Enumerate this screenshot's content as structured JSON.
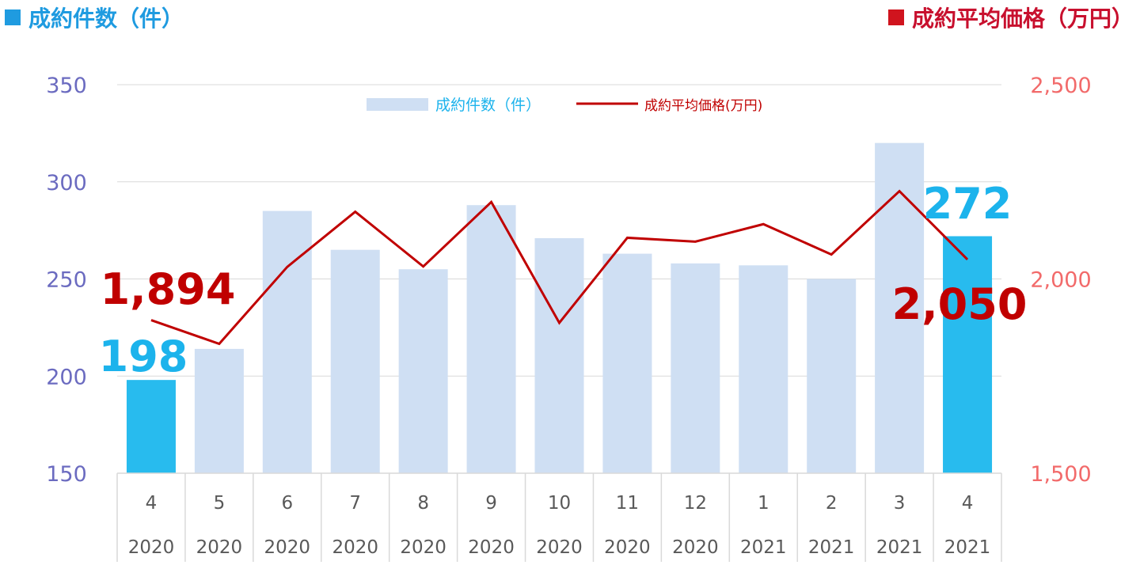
{
  "titles": {
    "left": "成約件数（件）",
    "right": "成約平均価格（万円）"
  },
  "colors": {
    "bar": "#cfdff3",
    "bar_highlight": "#28bbee",
    "line": "#c00000",
    "left_axis": "#6b6bc0",
    "right_axis": "#f26a6a",
    "left_title": "#1f9be0",
    "right_title": "#c8102e",
    "callout_blue": "#1cb3ec",
    "callout_red": "#c00000"
  },
  "chart_data": {
    "type": "bar+line",
    "categories": [
      {
        "month": "4",
        "year": "2020"
      },
      {
        "month": "5",
        "year": "2020"
      },
      {
        "month": "6",
        "year": "2020"
      },
      {
        "month": "7",
        "year": "2020"
      },
      {
        "month": "8",
        "year": "2020"
      },
      {
        "month": "9",
        "year": "2020"
      },
      {
        "month": "10",
        "year": "2020"
      },
      {
        "month": "11",
        "year": "2020"
      },
      {
        "month": "12",
        "year": "2020"
      },
      {
        "month": "1",
        "year": "2021"
      },
      {
        "month": "2",
        "year": "2021"
      },
      {
        "month": "3",
        "year": "2021"
      },
      {
        "month": "4",
        "year": "2021"
      }
    ],
    "series": [
      {
        "name": "成約件数（件）",
        "type": "bar",
        "axis": "left",
        "values": [
          198,
          214,
          285,
          265,
          255,
          288,
          271,
          263,
          258,
          257,
          250,
          320,
          272
        ],
        "highlight_indices": [
          0,
          12
        ]
      },
      {
        "name": "成約平均価格(万円)",
        "type": "line",
        "axis": "right",
        "values": [
          1894,
          1833,
          2031,
          2173,
          2032,
          2198,
          1887,
          2106,
          2096,
          2141,
          2063,
          2226,
          2050
        ]
      }
    ],
    "y_left": {
      "ylim": [
        150,
        350
      ],
      "ticks": [
        "150",
        "200",
        "250",
        "300",
        "350"
      ]
    },
    "y_right": {
      "ylim": [
        1500,
        2500
      ],
      "ticks": [
        "1,500",
        "2,000",
        "2,500"
      ]
    },
    "legend_placement": "top-center",
    "grid": true,
    "callouts": [
      {
        "text": "1,894",
        "series": "line",
        "index": 0
      },
      {
        "text": "198",
        "series": "bar",
        "index": 0
      },
      {
        "text": "272",
        "series": "bar",
        "index": 12
      },
      {
        "text": "2,050",
        "series": "line",
        "index": 12
      }
    ]
  }
}
